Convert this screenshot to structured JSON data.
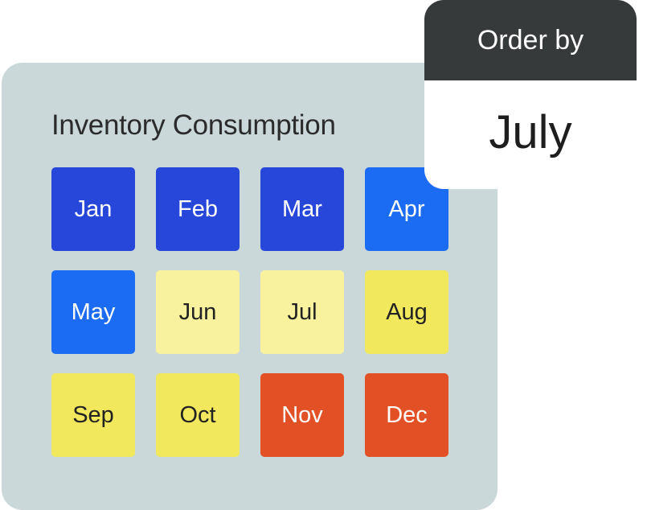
{
  "panel": {
    "title": "Inventory Consumption"
  },
  "months": [
    {
      "label": "Jan",
      "color": "#2647d9"
    },
    {
      "label": "Feb",
      "color": "#2647d9"
    },
    {
      "label": "Mar",
      "color": "#2647d9"
    },
    {
      "label": "Apr",
      "color": "#1c6cf3"
    },
    {
      "label": "May",
      "color": "#1c6cf3"
    },
    {
      "label": "Jun",
      "color": "#f8f19e"
    },
    {
      "label": "Jul",
      "color": "#f8f19e"
    },
    {
      "label": "Aug",
      "color": "#f2e85e"
    },
    {
      "label": "Sep",
      "color": "#f2e85e"
    },
    {
      "label": "Oct",
      "color": "#f2e85e"
    },
    {
      "label": "Nov",
      "color": "#e25125"
    },
    {
      "label": "Dec",
      "color": "#e25125"
    }
  ],
  "order": {
    "header": "Order by",
    "value": "July"
  }
}
